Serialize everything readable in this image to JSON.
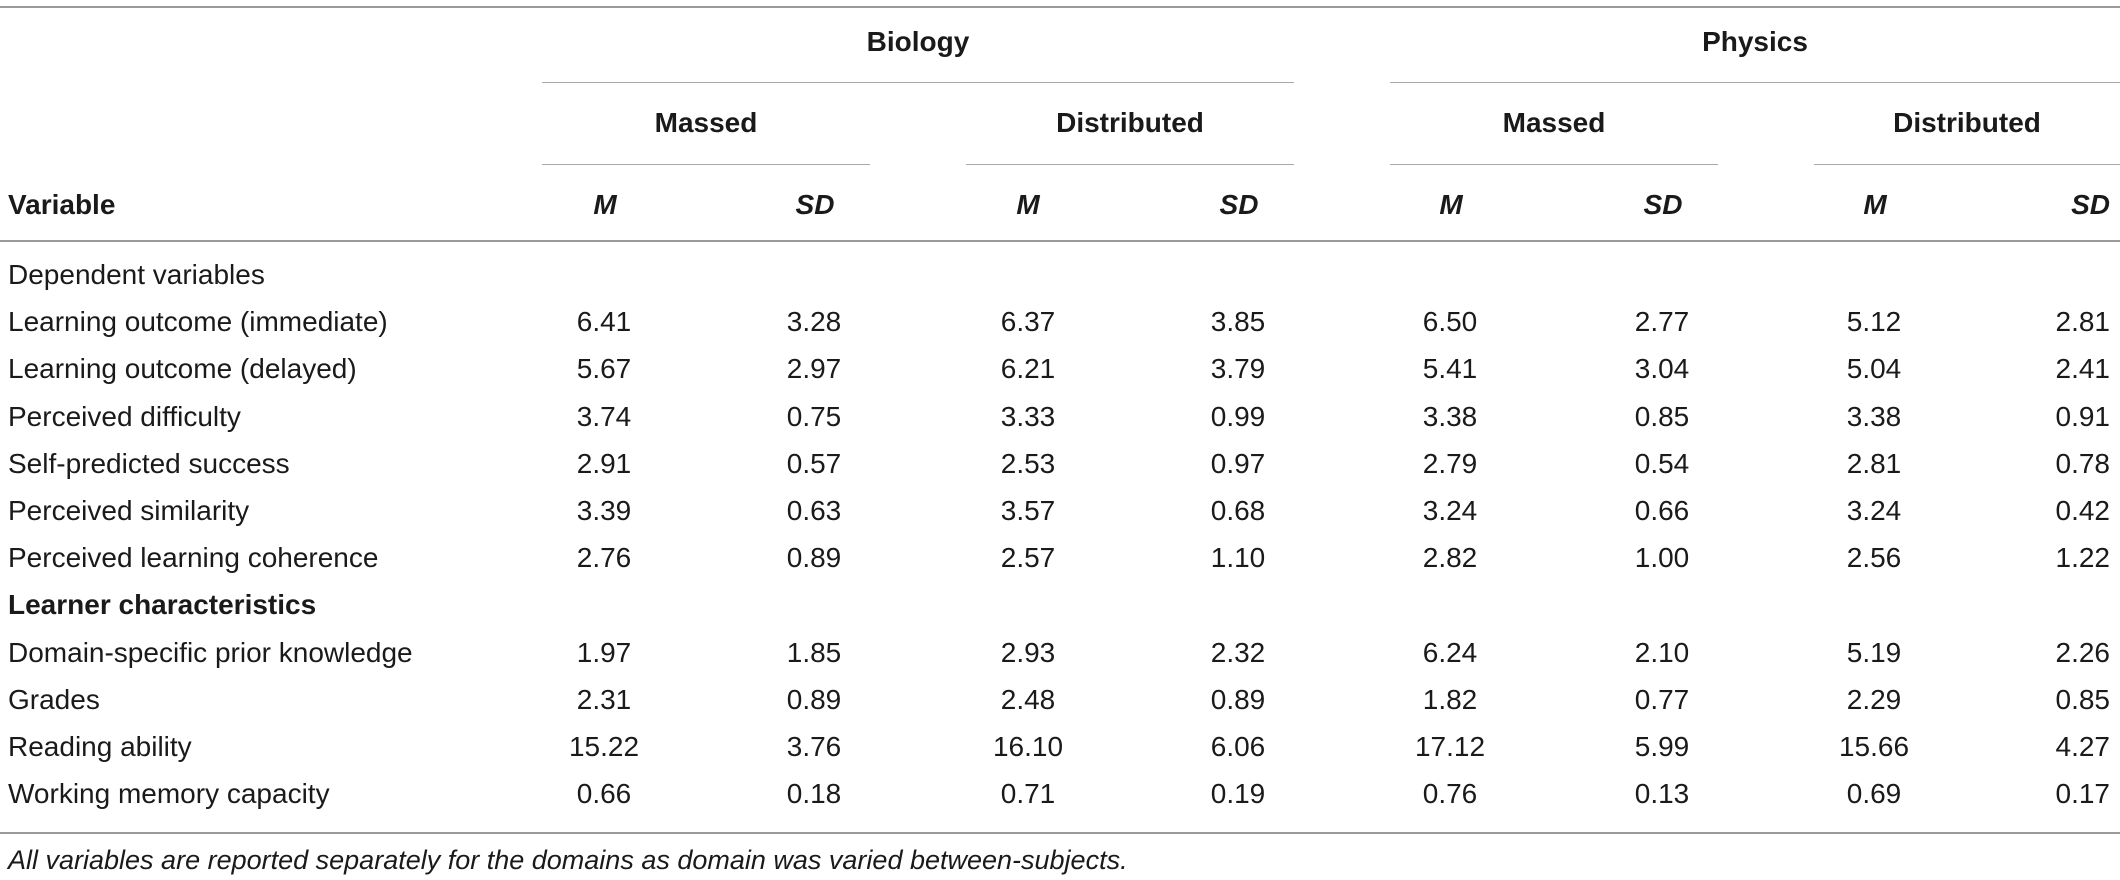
{
  "header": {
    "domains": [
      {
        "label": "Biology"
      },
      {
        "label": "Physics"
      }
    ],
    "conditions": [
      "Massed",
      "Distributed",
      "Massed",
      "Distributed"
    ],
    "variable_label": "Variable",
    "stats": [
      "M",
      "SD",
      "M",
      "SD",
      "M",
      "SD",
      "M",
      "SD"
    ]
  },
  "groups": [
    {
      "label": "Dependent variables",
      "bold": false,
      "rows": [
        {
          "label": "Learning outcome (immediate)",
          "values": [
            "6.41",
            "3.28",
            "6.37",
            "3.85",
            "6.50",
            "2.77",
            "5.12",
            "2.81"
          ]
        },
        {
          "label": "Learning outcome (delayed)",
          "values": [
            "5.67",
            "2.97",
            "6.21",
            "3.79",
            "5.41",
            "3.04",
            "5.04",
            "2.41"
          ]
        },
        {
          "label": "Perceived difficulty",
          "values": [
            "3.74",
            "0.75",
            "3.33",
            "0.99",
            "3.38",
            "0.85",
            "3.38",
            "0.91"
          ]
        },
        {
          "label": "Self-predicted success",
          "values": [
            "2.91",
            "0.57",
            "2.53",
            "0.97",
            "2.79",
            "0.54",
            "2.81",
            "0.78"
          ]
        },
        {
          "label": "Perceived similarity",
          "values": [
            "3.39",
            "0.63",
            "3.57",
            "0.68",
            "3.24",
            "0.66",
            "3.24",
            "0.42"
          ]
        },
        {
          "label": "Perceived learning coherence",
          "values": [
            "2.76",
            "0.89",
            "2.57",
            "1.10",
            "2.82",
            "1.00",
            "2.56",
            "1.22"
          ]
        }
      ]
    },
    {
      "label": "Learner characteristics",
      "bold": true,
      "rows": [
        {
          "label": "Domain-specific prior knowledge",
          "values": [
            "1.97",
            "1.85",
            "2.93",
            "2.32",
            "6.24",
            "2.10",
            "5.19",
            "2.26"
          ]
        },
        {
          "label": "Grades",
          "values": [
            "2.31",
            "0.89",
            "2.48",
            "0.89",
            "1.82",
            "0.77",
            "2.29",
            "0.85"
          ]
        },
        {
          "label": "Reading ability",
          "values": [
            "15.22",
            "3.76",
            "16.10",
            "6.06",
            "17.12",
            "5.99",
            "15.66",
            "4.27"
          ]
        },
        {
          "label": "Working memory capacity",
          "values": [
            "0.66",
            "0.18",
            "0.71",
            "0.19",
            "0.76",
            "0.13",
            "0.69",
            "0.17"
          ]
        }
      ]
    }
  ],
  "note": "All variables are reported separately for the domains as domain was varied between-subjects."
}
